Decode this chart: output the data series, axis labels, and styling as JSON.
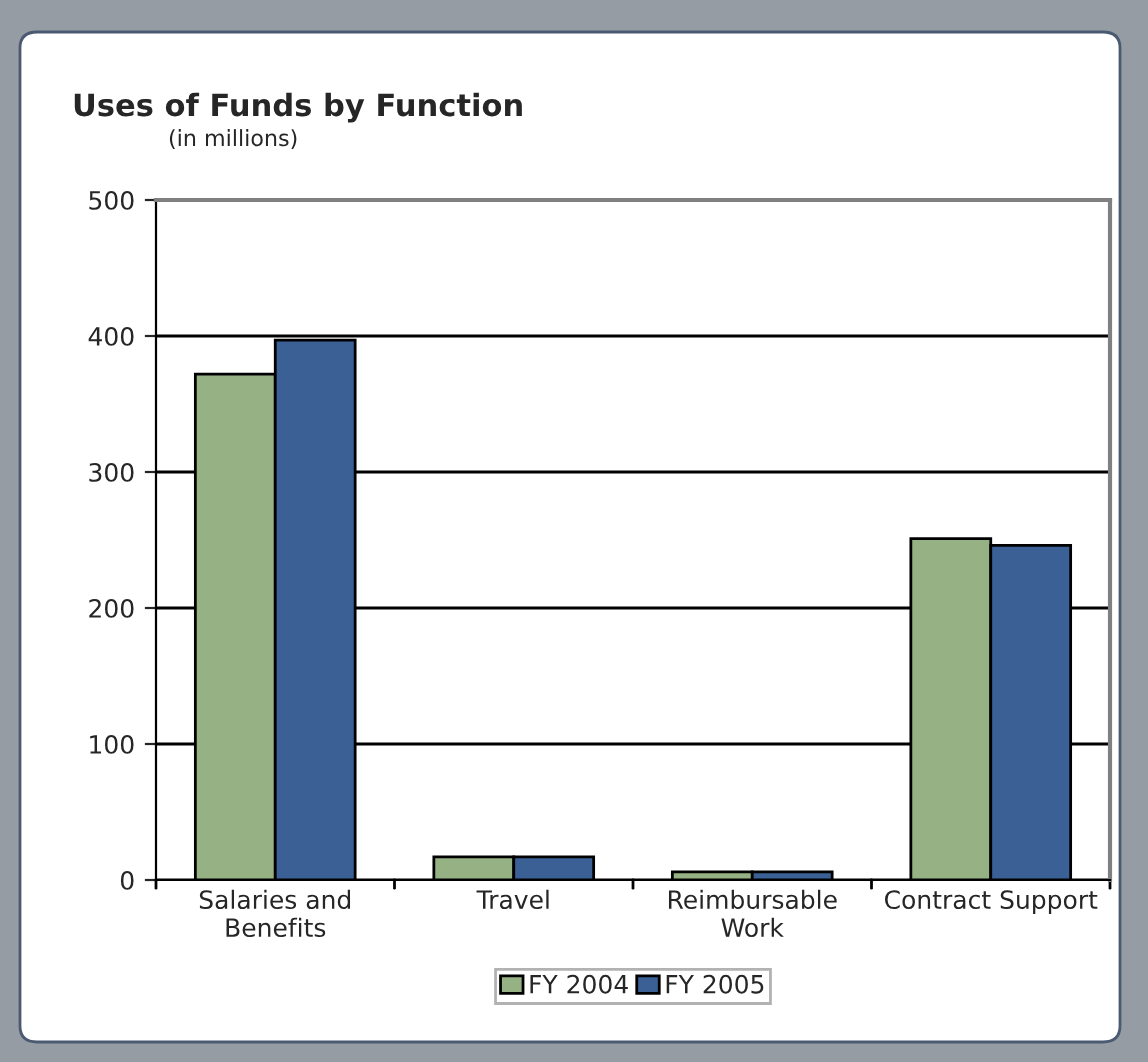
{
  "chart_data": {
    "type": "bar",
    "title": "Uses of Funds by Function",
    "subtitle": "(in millions)",
    "categories": [
      "Salaries and\nBenefits",
      "Travel",
      "Reimbursable\nWork",
      "Contract Support"
    ],
    "series": [
      {
        "name": "FY 2004",
        "color": "#96b285",
        "values": [
          372,
          17,
          6,
          251
        ]
      },
      {
        "name": "FY 2005",
        "color": "#3a6096",
        "values": [
          397,
          17,
          6,
          246
        ]
      }
    ],
    "ylim": [
      0,
      500
    ],
    "yticks": [
      0,
      100,
      200,
      300,
      400,
      500
    ],
    "grid": "y",
    "legend": "bottom"
  }
}
